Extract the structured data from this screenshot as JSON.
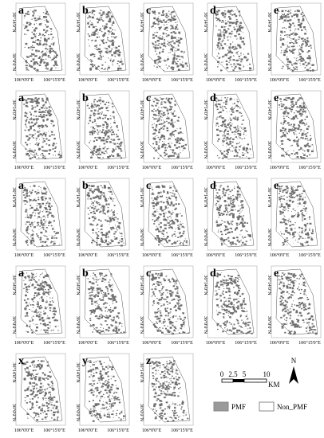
{
  "rows": [
    [
      "a",
      "b",
      "c",
      "d",
      "e"
    ],
    [
      "a",
      "b",
      "c",
      "d",
      "e"
    ],
    [
      "a",
      "b",
      "c",
      "d",
      "e"
    ],
    [
      "a",
      "b",
      "c",
      "d",
      "e"
    ],
    [
      "x",
      "y",
      "z"
    ]
  ],
  "axes": {
    "lat": [
      "36°14'0\"N",
      "36°0'0\"N"
    ],
    "lon": [
      "106°0'0\"E",
      "106°15'0\"E"
    ]
  },
  "scale_bar": {
    "ticks": [
      "0",
      "2.5",
      "5",
      "10"
    ],
    "unit": "KM"
  },
  "north": "N",
  "legend": [
    "PMF",
    "Non_PMF"
  ]
}
